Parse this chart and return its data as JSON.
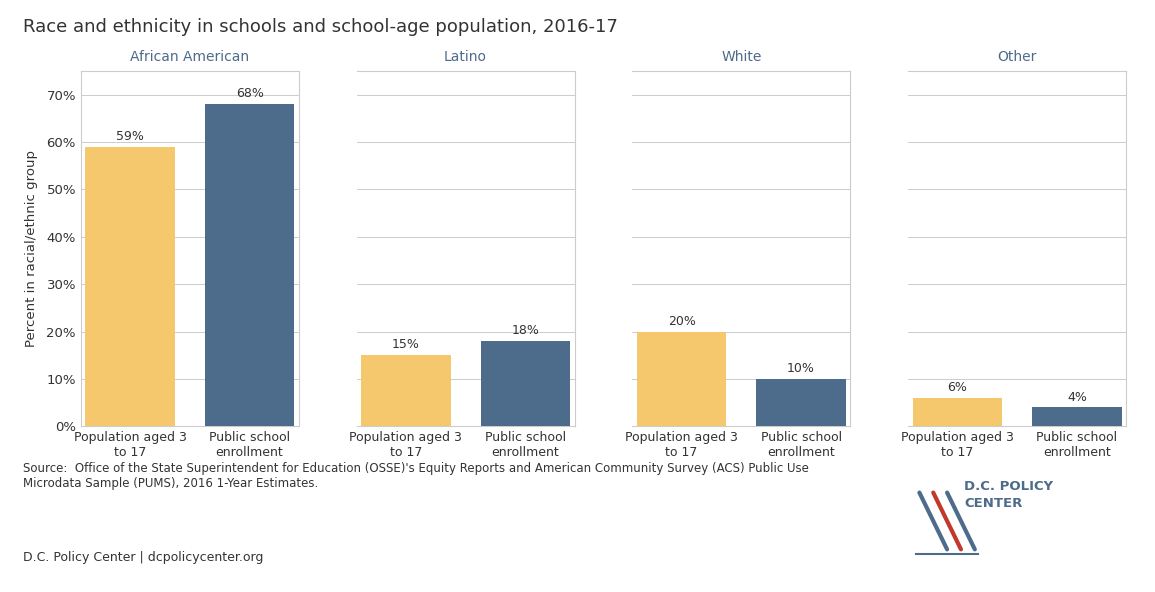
{
  "title": "Race and ethnicity in schools and school-age population, 2016-17",
  "ylabel": "Percent in racial/ethnic group",
  "groups": [
    "African American",
    "Latino",
    "White",
    "Other"
  ],
  "bar_labels": [
    "Population aged 3\nto 17",
    "Public school\nenrollment"
  ],
  "values": {
    "African American": [
      59,
      68
    ],
    "Latino": [
      15,
      18
    ],
    "White": [
      20,
      10
    ],
    "Other": [
      6,
      4
    ]
  },
  "color_population": "#F5C86E",
  "color_enrollment": "#4D6B8A",
  "yticks": [
    0,
    10,
    20,
    30,
    40,
    50,
    60,
    70
  ],
  "ylim": [
    0,
    75
  ],
  "source_text": "Source:  Office of the State Superintendent for Education (OSSE)'s Equity Reports and American Community Survey (ACS) Public Use\nMicrodata Sample (PUMS), 2016 1-Year Estimates.",
  "footer_text": "D.C. Policy Center | dcpolicycenter.org",
  "group_label_color": "#4D6B8A",
  "title_fontsize": 13,
  "axis_label_fontsize": 9.5,
  "bar_label_fontsize": 9,
  "value_label_fontsize": 9,
  "group_label_fontsize": 10,
  "source_fontsize": 8.5,
  "footer_fontsize": 9
}
